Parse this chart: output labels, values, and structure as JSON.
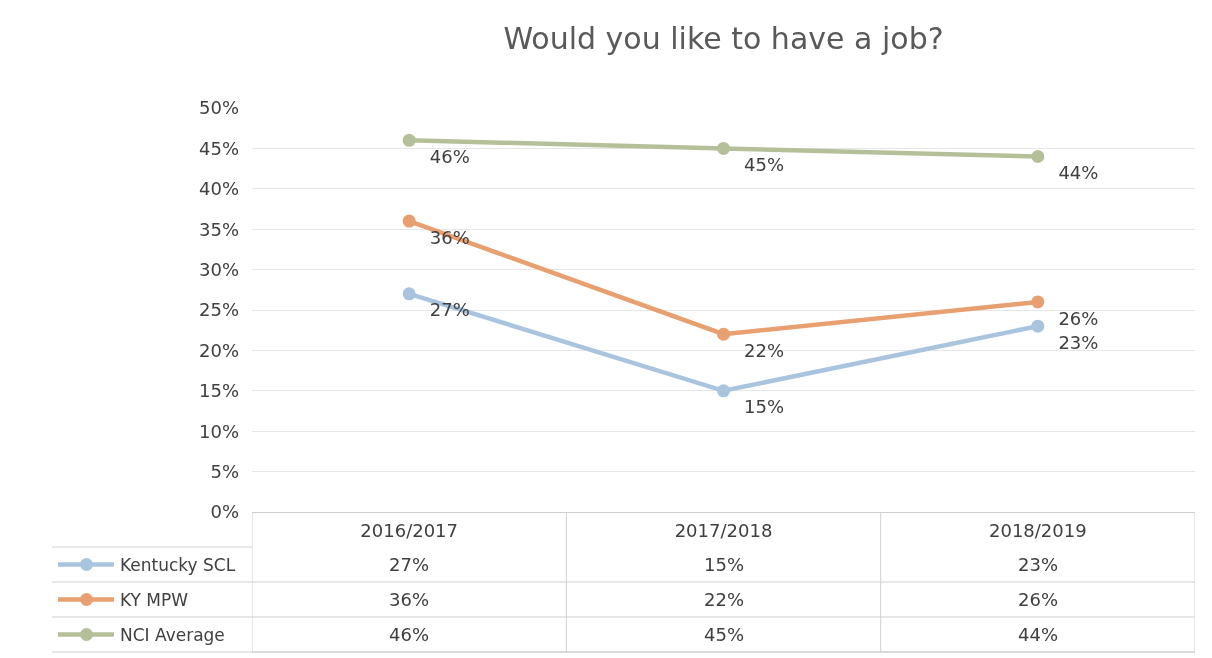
{
  "chart_data": {
    "type": "line",
    "title": "Would you like to have a job?",
    "categories": [
      "2016/2017",
      "2017/2018",
      "2018/2019"
    ],
    "series": [
      {
        "name": "Kentucky SCL",
        "color": "#a9c4de",
        "values": [
          27,
          15,
          23
        ],
        "value_labels": [
          "27%",
          "15%",
          "23%"
        ]
      },
      {
        "name": "KY MPW",
        "color": "#e8a070",
        "values": [
          36,
          22,
          26
        ],
        "value_labels": [
          "36%",
          "22%",
          "26%"
        ]
      },
      {
        "name": "NCI Average",
        "color": "#b5c09a",
        "values": [
          46,
          45,
          44
        ],
        "value_labels": [
          "46%",
          "45%",
          "44%"
        ]
      }
    ],
    "ylim": [
      0,
      50
    ],
    "yticks": [
      {
        "value": 0,
        "label": "0%"
      },
      {
        "value": 5,
        "label": "5%"
      },
      {
        "value": 10,
        "label": "10%"
      },
      {
        "value": 15,
        "label": "15%"
      },
      {
        "value": 20,
        "label": "20%"
      },
      {
        "value": 25,
        "label": "25%"
      },
      {
        "value": 30,
        "label": "30%"
      },
      {
        "value": 35,
        "label": "35%"
      },
      {
        "value": 40,
        "label": "40%"
      },
      {
        "value": 45,
        "label": "45%"
      },
      {
        "value": 50,
        "label": "50%"
      }
    ],
    "grid": "y",
    "legend": "bottom",
    "marker": "circle",
    "line_style": "solid"
  }
}
